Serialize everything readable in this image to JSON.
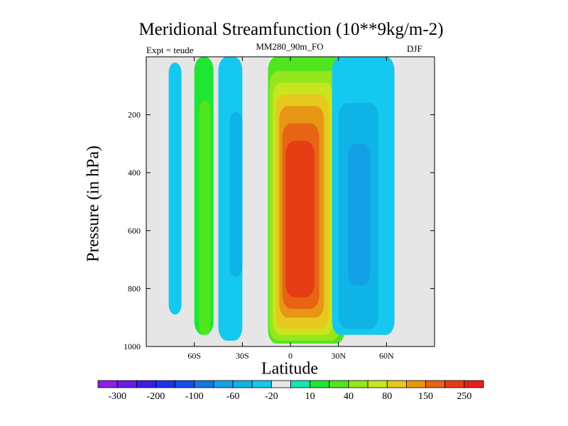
{
  "chart_data": {
    "type": "heatmap",
    "title": "Meridional Streamfunction (10**9kg/m-2)",
    "left_label": "Expt = teude",
    "center_label": "MM280_90m_FO",
    "right_label": "DJF",
    "xlabel": "Latitude",
    "ylabel": "Pressure (in hPa)",
    "xlim": [
      -90,
      90
    ],
    "ylim": [
      1000,
      0
    ],
    "x_ticks": [
      {
        "value": -60,
        "label": "60S"
      },
      {
        "value": -30,
        "label": "30S"
      },
      {
        "value": 0,
        "label": "0"
      },
      {
        "value": 30,
        "label": "30N"
      },
      {
        "value": 60,
        "label": "60N"
      }
    ],
    "y_ticks": [
      {
        "value": 200,
        "label": "200"
      },
      {
        "value": 400,
        "label": "400"
      },
      {
        "value": 600,
        "label": "600"
      },
      {
        "value": 800,
        "label": "800"
      },
      {
        "value": 1000,
        "label": "1000"
      }
    ],
    "levels": [
      -300,
      -250,
      -200,
      -150,
      -100,
      -80,
      -60,
      -40,
      -20,
      -10,
      10,
      20,
      40,
      60,
      80,
      100,
      150,
      200,
      250,
      300
    ],
    "colorbar_labels": [
      "-300",
      "-200",
      "-100",
      "-60",
      "-20",
      "10",
      "40",
      "80",
      "150",
      "250"
    ],
    "colors": [
      "#8c1ee6",
      "#6a1ee6",
      "#3c1ee6",
      "#1e32e6",
      "#1450e6",
      "#1478e0",
      "#14a0e6",
      "#0fb4e6",
      "#14c8f0",
      "#e6e6e6",
      "#14e6b4",
      "#1ee632",
      "#50e61e",
      "#96e61e",
      "#c8e61e",
      "#e6c81e",
      "#e69614",
      "#e66414",
      "#e63c14",
      "#e61e1e"
    ],
    "background_color": "#e6e6e6",
    "cells": [
      {
        "name": "cell-southern-outer-negative",
        "value": -20,
        "lat": [
          -76,
          -68
        ],
        "p": [
          20,
          890
        ]
      },
      {
        "name": "cell-southern-ferrel-positive",
        "value": 20,
        "lat": [
          -60,
          -48
        ],
        "p": [
          0,
          960
        ]
      },
      {
        "name": "cell-southern-ferrel-core",
        "value": 40,
        "lat": [
          -57,
          -50
        ],
        "p": [
          150,
          960
        ]
      },
      {
        "name": "cell-southern-hadley-negative",
        "value": -20,
        "lat": [
          -45,
          -30
        ],
        "p": [
          0,
          980
        ]
      },
      {
        "name": "cell-southern-hadley-inner",
        "value": -40,
        "lat": [
          -38,
          -30
        ],
        "p": [
          190,
          760
        ]
      },
      {
        "name": "cell-equatorial-positive",
        "value": 40,
        "lat": [
          -14,
          34
        ],
        "p": [
          0,
          990
        ]
      },
      {
        "name": "cell-equatorial-60",
        "value": 60,
        "lat": [
          -13,
          31
        ],
        "p": [
          50,
          980
        ]
      },
      {
        "name": "cell-equatorial-80",
        "value": 80,
        "lat": [
          -11,
          27
        ],
        "p": [
          90,
          960
        ]
      },
      {
        "name": "cell-equatorial-100",
        "value": 100,
        "lat": [
          -9,
          24
        ],
        "p": [
          130,
          940
        ]
      },
      {
        "name": "cell-equatorial-150",
        "value": 150,
        "lat": [
          -7,
          21
        ],
        "p": [
          170,
          900
        ]
      },
      {
        "name": "cell-equatorial-200",
        "value": 200,
        "lat": [
          -5,
          18
        ],
        "p": [
          230,
          870
        ]
      },
      {
        "name": "cell-equatorial-250",
        "value": 250,
        "lat": [
          -3,
          15
        ],
        "p": [
          290,
          830
        ]
      },
      {
        "name": "cell-northern-negative",
        "value": -20,
        "lat": [
          26,
          65
        ],
        "p": [
          0,
          960
        ]
      },
      {
        "name": "cell-northern-40",
        "value": -40,
        "lat": [
          30,
          55
        ],
        "p": [
          160,
          940
        ]
      },
      {
        "name": "cell-northern-60",
        "value": -60,
        "lat": [
          36,
          50
        ],
        "p": [
          300,
          790
        ]
      }
    ]
  }
}
